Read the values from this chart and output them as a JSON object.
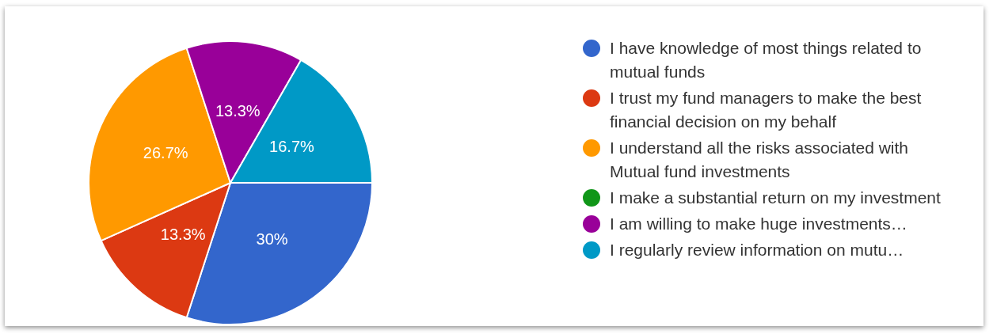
{
  "chart_data": {
    "type": "pie",
    "categories": [
      "I have knowledge of most things related to mutual funds",
      "I trust my fund managers to make the best financial decision on my behalf",
      "I understand all the risks associated with Mutual fund investments",
      "I make a substantial return on my investment",
      "I am willing to make huge investments…",
      "I regularly review information on mutu…"
    ],
    "values": [
      30,
      13.3,
      26.7,
      0,
      13.3,
      16.7
    ],
    "colors": [
      "#3366cc",
      "#dc3912",
      "#ff9900",
      "#109618",
      "#990099",
      "#0099c6"
    ],
    "value_labels": [
      "30%",
      "13.3%",
      "26.7%",
      null,
      "13.3%",
      "16.7%"
    ],
    "legend": "right"
  }
}
